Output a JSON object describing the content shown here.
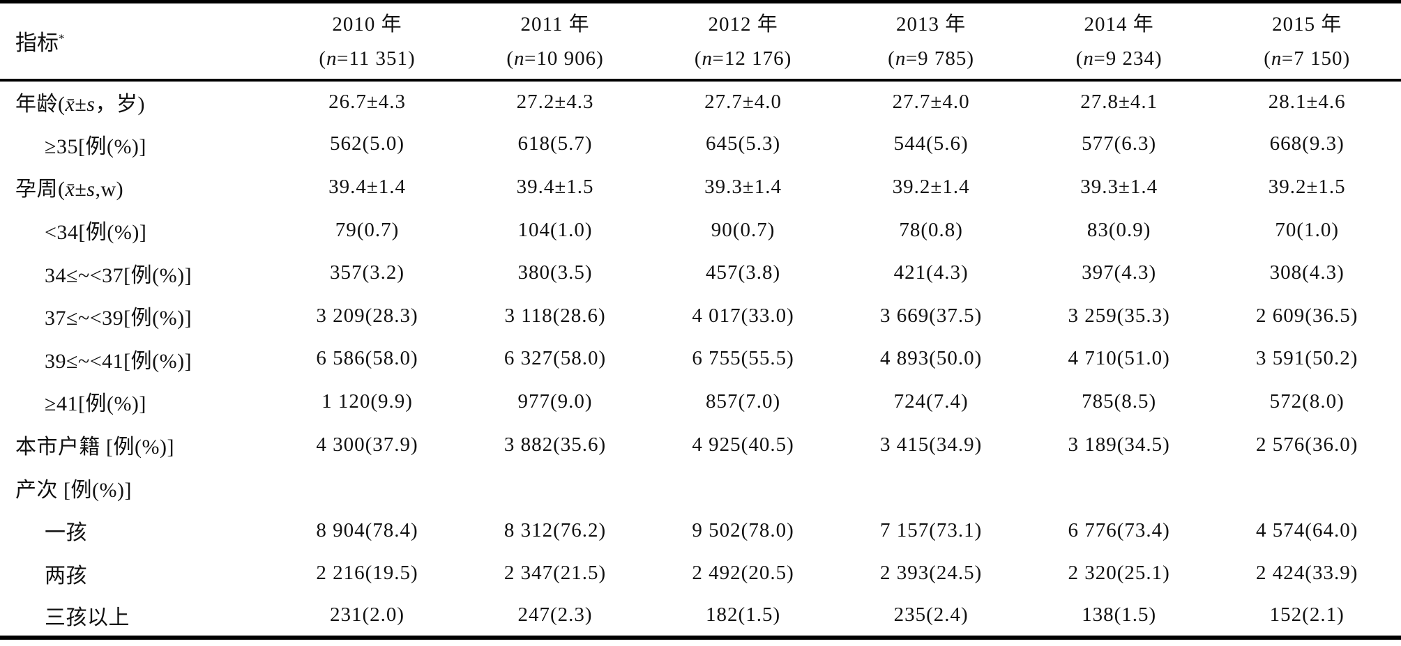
{
  "colors": {
    "text": "#111111",
    "background": "#ffffff",
    "rule": "#000000"
  },
  "table": {
    "header": {
      "indicator_label_html": "指标<sup>*</sup>",
      "columns": [
        {
          "year": "2010 年",
          "n_html": "(<i>n</i>=11 351)"
        },
        {
          "year": "2011 年",
          "n_html": "(<i>n</i>=10 906)"
        },
        {
          "year": "2012 年",
          "n_html": "(<i>n</i>=12 176)"
        },
        {
          "year": "2013 年",
          "n_html": "(<i>n</i>=9 785)"
        },
        {
          "year": "2014 年",
          "n_html": "(<i>n</i>=9 234)"
        },
        {
          "year": "2015 年",
          "n_html": "(<i>n</i>=7 150)"
        }
      ]
    },
    "rows": [
      {
        "label_html": "年龄(<i>x̄</i>±<i>s</i>，岁)",
        "indent": false,
        "values": [
          "26.7±4.3",
          "27.2±4.3",
          "27.7±4.0",
          "27.7±4.0",
          "27.8±4.1",
          "28.1±4.6"
        ]
      },
      {
        "label_html": "≥35[例(%)]",
        "indent": true,
        "values": [
          "562(5.0)",
          "618(5.7)",
          "645(5.3)",
          "544(5.6)",
          "577(6.3)",
          "668(9.3)"
        ]
      },
      {
        "label_html": "孕周(<i>x̄</i>±<i>s</i>,w)",
        "indent": false,
        "values": [
          "39.4±1.4",
          "39.4±1.5",
          "39.3±1.4",
          "39.2±1.4",
          "39.3±1.4",
          "39.2±1.5"
        ]
      },
      {
        "label_html": "&lt;34[例(%)]",
        "indent": true,
        "values": [
          "79(0.7)",
          "104(1.0)",
          "90(0.7)",
          "78(0.8)",
          "83(0.9)",
          "70(1.0)"
        ]
      },
      {
        "label_html": "34≤~&lt;37[例(%)]",
        "indent": true,
        "values": [
          "357(3.2)",
          "380(3.5)",
          "457(3.8)",
          "421(4.3)",
          "397(4.3)",
          "308(4.3)"
        ]
      },
      {
        "label_html": "37≤~&lt;39[例(%)]",
        "indent": true,
        "values": [
          "3 209(28.3)",
          "3 118(28.6)",
          "4 017(33.0)",
          "3 669(37.5)",
          "3 259(35.3)",
          "2 609(36.5)"
        ]
      },
      {
        "label_html": "39≤~&lt;41[例(%)]",
        "indent": true,
        "values": [
          "6 586(58.0)",
          "6 327(58.0)",
          "6 755(55.5)",
          "4 893(50.0)",
          "4 710(51.0)",
          "3 591(50.2)"
        ]
      },
      {
        "label_html": "≥41[例(%)]",
        "indent": true,
        "values": [
          "1 120(9.9)",
          "977(9.0)",
          "857(7.0)",
          "724(7.4)",
          "785(8.5)",
          "572(8.0)"
        ]
      },
      {
        "label_html": "本市户籍 [例(%)]",
        "indent": false,
        "values": [
          "4 300(37.9)",
          "3 882(35.6)",
          "4 925(40.5)",
          "3 415(34.9)",
          "3 189(34.5)",
          "2 576(36.0)"
        ]
      },
      {
        "label_html": "产次 [例(%)]",
        "indent": false,
        "values": [
          "",
          "",
          "",
          "",
          "",
          ""
        ]
      },
      {
        "label_html": "一孩",
        "indent": true,
        "values": [
          "8 904(78.4)",
          "8 312(76.2)",
          "9 502(78.0)",
          "7 157(73.1)",
          "6 776(73.4)",
          "4 574(64.0)"
        ]
      },
      {
        "label_html": "两孩",
        "indent": true,
        "values": [
          "2 216(19.5)",
          "2 347(21.5)",
          "2 492(20.5)",
          "2 393(24.5)",
          "2 320(25.1)",
          "2 424(33.9)"
        ]
      },
      {
        "label_html": "三孩以上",
        "indent": true,
        "values": [
          "231(2.0)",
          "247(2.3)",
          "182(1.5)",
          "235(2.4)",
          "138(1.5)",
          "152(2.1)"
        ]
      }
    ]
  }
}
